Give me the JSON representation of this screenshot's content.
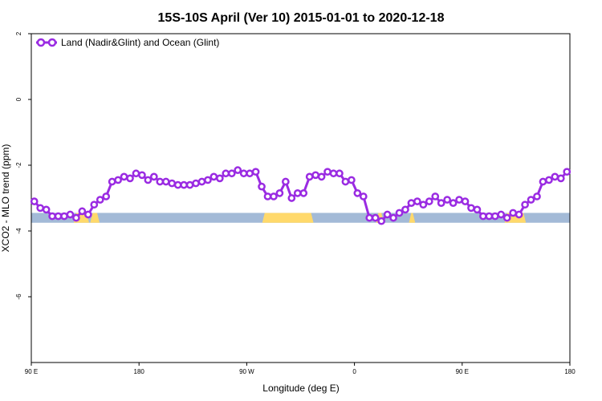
{
  "chart_data": {
    "type": "line",
    "title": "15S-10S April (Ver 10)   2015-01-01 to 2020-12-18",
    "xlabel": "Longitude (deg E)",
    "ylabel": "XCO2 - MLO trend (ppm)",
    "xlim": [
      0,
      360
    ],
    "ylim": [
      -8,
      2
    ],
    "x_ticks": [
      {
        "value": 0,
        "label": "90 E"
      },
      {
        "value": 72,
        "label": "180"
      },
      {
        "value": 144,
        "label": "90 W"
      },
      {
        "value": 216,
        "label": "0"
      },
      {
        "value": 288,
        "label": "90 E"
      },
      {
        "value": 360,
        "label": "180"
      }
    ],
    "y_ticks": [
      {
        "value": 2,
        "label": "2"
      },
      {
        "value": 0,
        "label": "0"
      },
      {
        "value": -2,
        "label": "-2"
      },
      {
        "value": -4,
        "label": "-4"
      },
      {
        "value": -6,
        "label": "-6"
      }
    ],
    "legend": {
      "position": "top-left",
      "entries": [
        "Land (Nadir&Glint) and Ocean (Glint)"
      ]
    },
    "colors": {
      "series": "#9a2be2",
      "ocean": "#a3bad7",
      "land": "#ffd96b"
    },
    "surface_band": {
      "y_top": -3.45,
      "y_bottom": -3.75,
      "land_segments": [
        [
          30,
          37
        ],
        [
          41,
          44
        ],
        [
          156,
          187
        ],
        [
          232,
          234
        ],
        [
          254,
          255
        ],
        [
          318,
          329
        ]
      ]
    },
    "series": [
      {
        "name": "Land (Nadir&Glint) and Ocean (Glint)",
        "x": [
          2,
          6,
          10,
          14,
          18,
          22,
          26,
          30,
          34,
          38,
          42,
          46,
          50,
          54,
          58,
          62,
          66,
          70,
          74,
          78,
          82,
          86,
          90,
          94,
          98,
          102,
          106,
          110,
          114,
          118,
          122,
          126,
          130,
          134,
          138,
          142,
          146,
          150,
          154,
          158,
          162,
          166,
          170,
          174,
          178,
          182,
          186,
          190,
          194,
          198,
          202,
          206,
          210,
          214,
          218,
          222,
          226,
          230,
          234,
          238,
          242,
          246,
          250,
          254,
          258,
          262,
          266,
          270,
          274,
          278,
          282,
          286,
          290,
          294,
          298,
          302,
          306,
          310,
          314,
          318,
          322,
          326,
          330,
          334,
          338,
          342,
          346,
          350,
          354,
          358
        ],
        "values": [
          -3.1,
          -3.3,
          -3.35,
          -3.55,
          -3.55,
          -3.55,
          -3.5,
          -3.6,
          -3.4,
          -3.5,
          -3.2,
          -3.05,
          -2.95,
          -2.5,
          -2.45,
          -2.35,
          -2.4,
          -2.25,
          -2.3,
          -2.45,
          -2.35,
          -2.5,
          -2.5,
          -2.55,
          -2.6,
          -2.6,
          -2.6,
          -2.55,
          -2.5,
          -2.45,
          -2.35,
          -2.4,
          -2.25,
          -2.25,
          -2.15,
          -2.25,
          -2.25,
          -2.2,
          -2.65,
          -2.95,
          -2.95,
          -2.85,
          -2.5,
          -3.0,
          -2.85,
          -2.85,
          -2.35,
          -2.3,
          -2.35,
          -2.2,
          -2.25,
          -2.25,
          -2.5,
          -2.45,
          -2.85,
          -2.95,
          -3.6,
          -3.6,
          -3.7,
          -3.5,
          -3.6,
          -3.45,
          -3.35,
          -3.15,
          -3.1,
          -3.2,
          -3.1,
          -2.95,
          -3.15,
          -3.05,
          -3.15,
          -3.05,
          -3.1,
          -3.3,
          -3.35,
          -3.55,
          -3.55,
          -3.55,
          -3.5,
          -3.6,
          -3.45,
          -3.5,
          -3.2,
          -3.05,
          -2.95,
          -2.5,
          -2.45,
          -2.35,
          -2.4,
          -2.2
        ]
      }
    ]
  }
}
